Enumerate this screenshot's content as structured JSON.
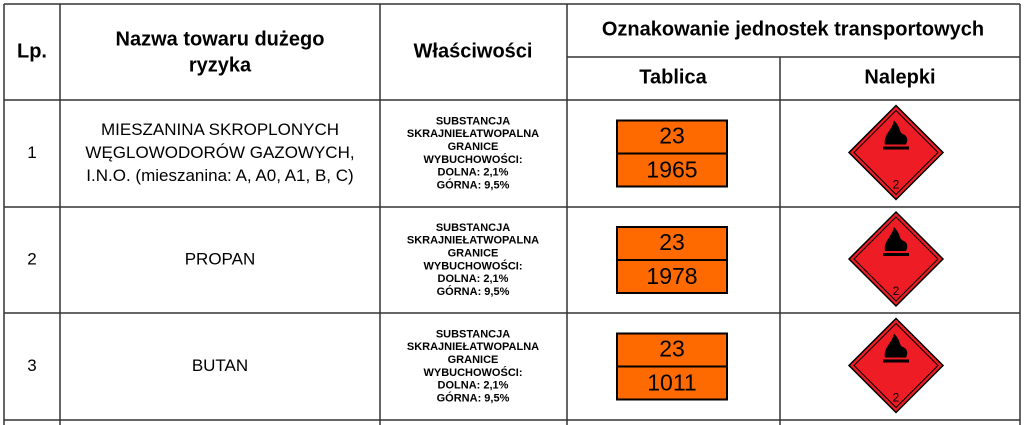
{
  "header": {
    "lp": "Lp.",
    "name": [
      "Nazwa towaru dużego",
      "ryzyka"
    ],
    "properties": "Właściwości",
    "marking": "Oznakowanie jednostek transportowych",
    "plate": "Tablica",
    "labels": "Nalepki"
  },
  "rows": [
    {
      "lp": "1",
      "name": [
        "MIESZANINA SKROPLONYCH",
        "WĘGLOWODORÓW GAZOWYCH,",
        "I.N.O. (mieszanina: A, A0, A1, B, C)"
      ],
      "properties": [
        "SUBSTANCJA",
        "SKRAJNIEŁATWOPALNA",
        "GRANICE",
        "WYBUCHOWOŚCI:",
        "DOLNA: 2,1%",
        "GÓRNA: 9,5%"
      ],
      "plate_top": "23",
      "plate_bottom": "1965",
      "label_class": "2"
    },
    {
      "lp": "2",
      "name": [
        "PROPAN"
      ],
      "properties": [
        "SUBSTANCJA",
        "SKRAJNIEŁATWOPALNA",
        "GRANICE",
        "WYBUCHOWOŚCI:",
        "DOLNA: 2,1%",
        "GÓRNA: 9,5%"
      ],
      "plate_top": "23",
      "plate_bottom": "1978",
      "label_class": "2"
    },
    {
      "lp": "3",
      "name": [
        "BUTAN"
      ],
      "properties": [
        "SUBSTANCJA",
        "SKRAJNIEŁATWOPALNA",
        "GRANICE",
        "WYBUCHOWOŚCI:",
        "DOLNA: 2,1%",
        "GÓRNA: 9,5%"
      ],
      "plate_top": "23",
      "plate_bottom": "1011",
      "label_class": "2"
    }
  ]
}
